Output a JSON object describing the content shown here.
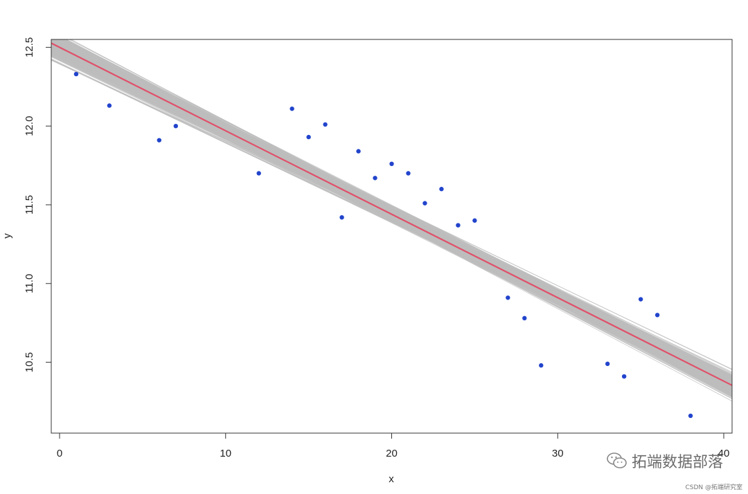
{
  "chart_data": {
    "type": "scatter",
    "xlabel": "x",
    "ylabel": "y",
    "xlim": [
      -0.5,
      40.5
    ],
    "ylim": [
      10.05,
      12.55
    ],
    "x_ticks": [
      0,
      10,
      20,
      30,
      40
    ],
    "y_ticks": [
      10.5,
      11.0,
      11.5,
      12.0,
      12.5
    ],
    "points": {
      "color": "#2244cc",
      "x": [
        1,
        3,
        6,
        7,
        12,
        14,
        15,
        16,
        17,
        18,
        19,
        20,
        21,
        22,
        23,
        24,
        25,
        27,
        28,
        29,
        33,
        34,
        35,
        36,
        38
      ],
      "y": [
        12.33,
        12.13,
        11.91,
        12.0,
        11.7,
        12.11,
        11.93,
        12.01,
        11.42,
        11.84,
        11.67,
        11.76,
        11.7,
        11.51,
        11.6,
        11.37,
        11.4,
        10.91,
        10.78,
        10.48,
        10.49,
        10.41,
        10.9,
        10.8,
        10.16
      ]
    },
    "regression_line": {
      "color": "#e0506a",
      "intercept": 12.5,
      "slope": -0.053
    },
    "posterior_lines": {
      "color": "#bdbdbd",
      "count": 400,
      "intercept_mean": 12.5,
      "slope_mean": -0.053
    },
    "grid": false,
    "legend": "none"
  },
  "watermark": {
    "text": "拓端数据部落",
    "credit": "CSDN @拓端研究室"
  }
}
